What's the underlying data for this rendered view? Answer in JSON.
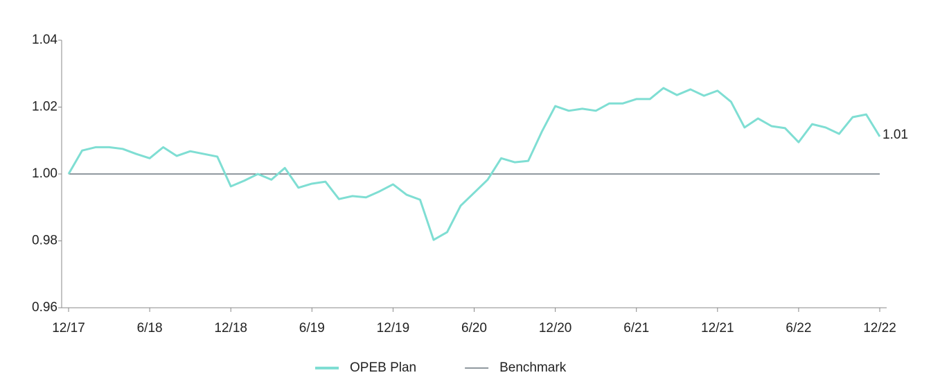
{
  "chart_data": {
    "type": "line",
    "categories": [
      "12/17",
      null,
      null,
      null,
      null,
      null,
      "6/18",
      null,
      null,
      null,
      null,
      null,
      "12/18",
      null,
      null,
      null,
      null,
      null,
      "6/19",
      null,
      null,
      null,
      null,
      null,
      "12/19",
      null,
      null,
      null,
      null,
      null,
      "6/20",
      null,
      null,
      null,
      null,
      null,
      "12/20",
      null,
      null,
      null,
      null,
      null,
      "6/21",
      null,
      null,
      null,
      null,
      null,
      "12/21",
      null,
      null,
      null,
      null,
      null,
      "6/22",
      null,
      null,
      null,
      null,
      null,
      "12/22"
    ],
    "series": [
      {
        "name": "OPEB Plan",
        "color": "#7fded3",
        "values": [
          1.0,
          1.007,
          1.008,
          1.008,
          1.0075,
          1.006,
          1.0047,
          1.008,
          1.0054,
          1.0068,
          1.006,
          1.0052,
          0.9963,
          0.998,
          1.0,
          0.9983,
          1.0018,
          0.9959,
          0.9971,
          0.9977,
          0.9925,
          0.9934,
          0.993,
          0.9948,
          0.9969,
          0.9938,
          0.9923,
          0.9803,
          0.9826,
          0.9905,
          0.9944,
          0.9983,
          1.0047,
          1.0035,
          1.0039,
          1.0126,
          1.0203,
          1.0189,
          1.0195,
          1.0189,
          1.0211,
          1.0211,
          1.0224,
          1.0224,
          1.0257,
          1.0236,
          1.0253,
          1.0234,
          1.0249,
          1.0216,
          1.0139,
          1.0166,
          1.0143,
          1.0137,
          1.0095,
          1.0149,
          1.0139,
          1.012,
          1.017,
          1.0178,
          1.0112
        ],
        "value_labels": [
          null,
          null,
          null,
          null,
          null,
          null,
          null,
          null,
          null,
          null,
          null,
          null,
          null,
          null,
          null,
          null,
          null,
          null,
          null,
          null,
          null,
          null,
          null,
          null,
          null,
          null,
          null,
          null,
          null,
          null,
          null,
          null,
          null,
          null,
          null,
          null,
          null,
          null,
          null,
          null,
          null,
          null,
          null,
          null,
          null,
          null,
          null,
          null,
          null,
          null,
          null,
          null,
          null,
          null,
          null,
          null,
          null,
          null,
          null,
          null,
          "1.01"
        ]
      },
      {
        "name": "Benchmark",
        "color": "#4d5b66",
        "values": [
          1,
          1,
          1,
          1,
          1,
          1,
          1,
          1,
          1,
          1,
          1,
          1,
          1,
          1,
          1,
          1,
          1,
          1,
          1,
          1,
          1,
          1,
          1,
          1,
          1,
          1,
          1,
          1,
          1,
          1,
          1,
          1,
          1,
          1,
          1,
          1,
          1,
          1,
          1,
          1,
          1,
          1,
          1,
          1,
          1,
          1,
          1,
          1,
          1,
          1,
          1,
          1,
          1,
          1,
          1,
          1,
          1,
          1,
          1,
          1,
          1
        ]
      }
    ],
    "ylim": [
      0.96,
      1.04
    ],
    "yticks": [
      0.96,
      0.98,
      {
        "value": 1.0,
        "label": "1.00"
      },
      1.02,
      1.04
    ],
    "grid": false,
    "legend": "bottom"
  }
}
